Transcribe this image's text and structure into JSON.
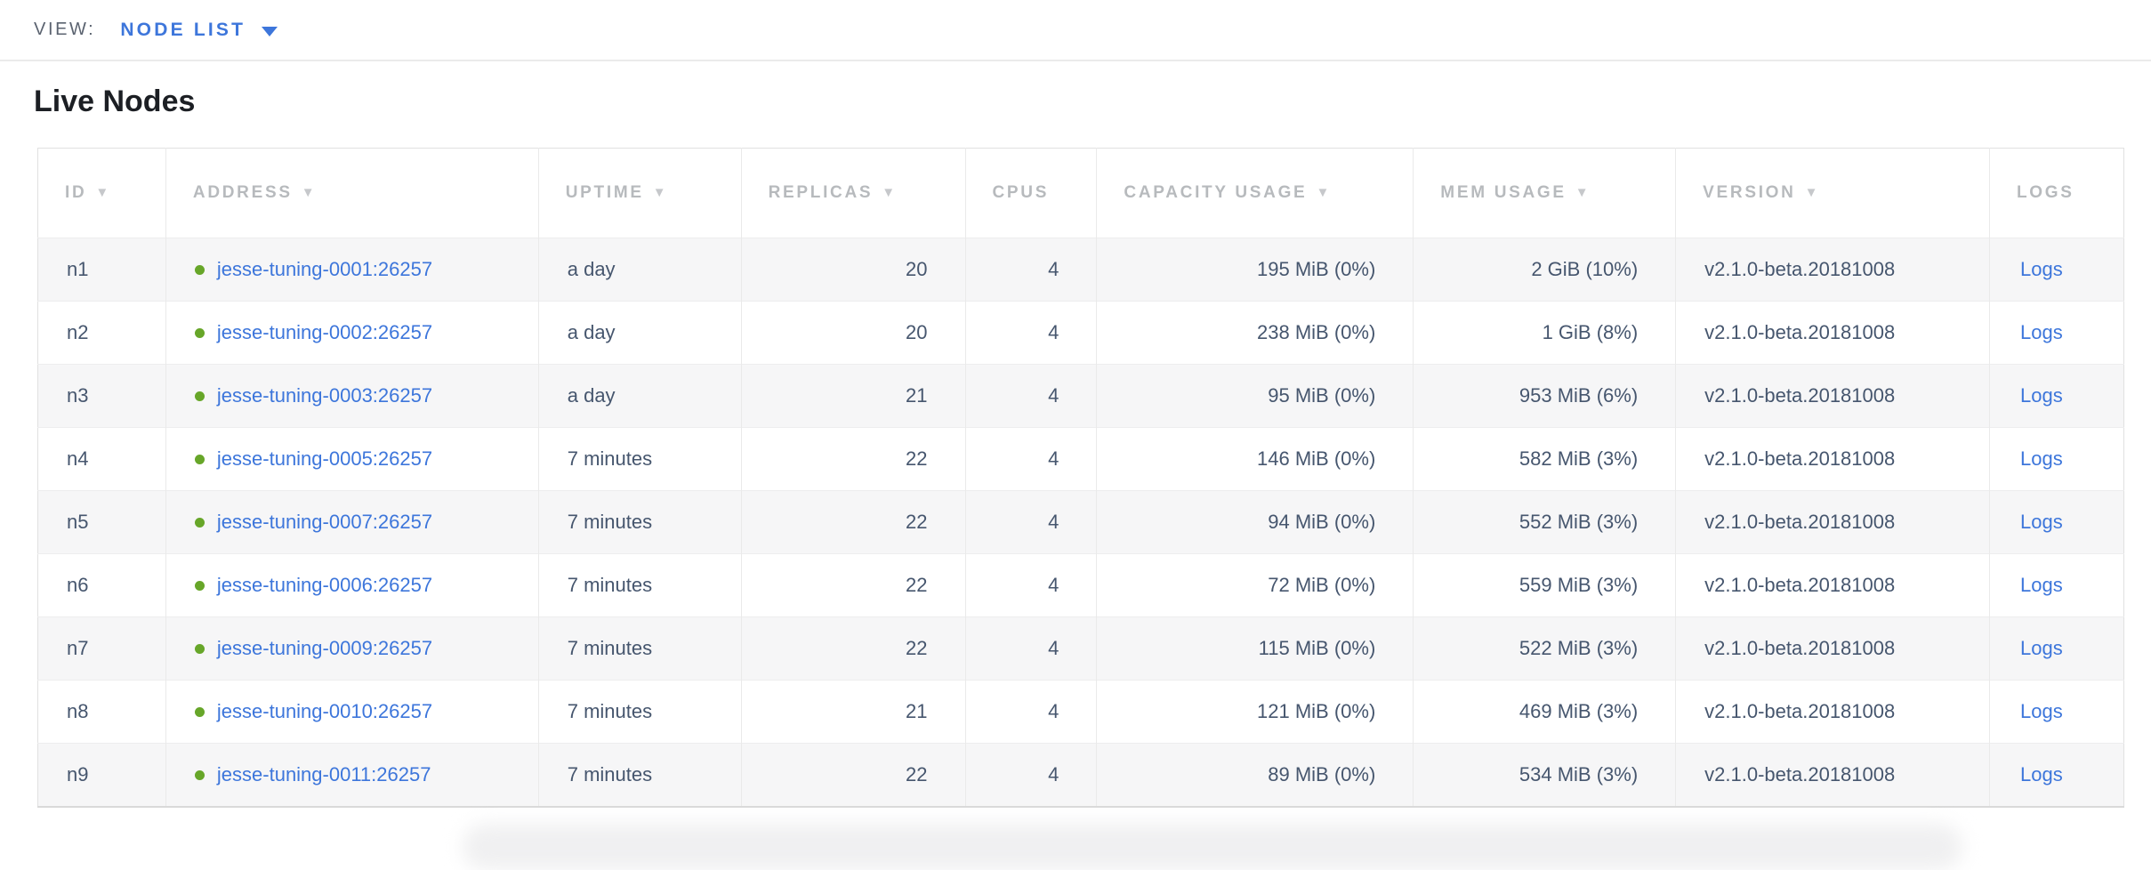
{
  "view_bar": {
    "label": "VIEW:",
    "selected": "NODE LIST"
  },
  "page_title": "Live Nodes",
  "table": {
    "sort_icon": "▼",
    "columns": [
      {
        "key": "id",
        "label": "ID",
        "sortable": true,
        "align": "left"
      },
      {
        "key": "address",
        "label": "ADDRESS",
        "sortable": true,
        "align": "left",
        "type": "node-link"
      },
      {
        "key": "uptime",
        "label": "UPTIME",
        "sortable": true,
        "align": "left"
      },
      {
        "key": "replicas",
        "label": "REPLICAS",
        "sortable": true,
        "align": "right"
      },
      {
        "key": "cpus",
        "label": "CPUS",
        "sortable": false,
        "align": "right"
      },
      {
        "key": "capacity",
        "label": "CAPACITY USAGE",
        "sortable": true,
        "align": "right"
      },
      {
        "key": "mem",
        "label": "MEM USAGE",
        "sortable": true,
        "align": "right"
      },
      {
        "key": "version",
        "label": "VERSION",
        "sortable": true,
        "align": "left"
      },
      {
        "key": "logs",
        "label": "LOGS",
        "sortable": false,
        "align": "left",
        "type": "link"
      }
    ],
    "rows": [
      {
        "id": "n1",
        "address": "jesse-tuning-0001:26257",
        "uptime": "a day",
        "replicas": "20",
        "cpus": "4",
        "capacity": "195 MiB (0%)",
        "mem": "2 GiB (10%)",
        "version": "v2.1.0-beta.20181008",
        "logs": "Logs"
      },
      {
        "id": "n2",
        "address": "jesse-tuning-0002:26257",
        "uptime": "a day",
        "replicas": "20",
        "cpus": "4",
        "capacity": "238 MiB (0%)",
        "mem": "1 GiB (8%)",
        "version": "v2.1.0-beta.20181008",
        "logs": "Logs"
      },
      {
        "id": "n3",
        "address": "jesse-tuning-0003:26257",
        "uptime": "a day",
        "replicas": "21",
        "cpus": "4",
        "capacity": "95 MiB (0%)",
        "mem": "953 MiB (6%)",
        "version": "v2.1.0-beta.20181008",
        "logs": "Logs"
      },
      {
        "id": "n4",
        "address": "jesse-tuning-0005:26257",
        "uptime": "7 minutes",
        "replicas": "22",
        "cpus": "4",
        "capacity": "146 MiB (0%)",
        "mem": "582 MiB (3%)",
        "version": "v2.1.0-beta.20181008",
        "logs": "Logs"
      },
      {
        "id": "n5",
        "address": "jesse-tuning-0007:26257",
        "uptime": "7 minutes",
        "replicas": "22",
        "cpus": "4",
        "capacity": "94 MiB (0%)",
        "mem": "552 MiB (3%)",
        "version": "v2.1.0-beta.20181008",
        "logs": "Logs"
      },
      {
        "id": "n6",
        "address": "jesse-tuning-0006:26257",
        "uptime": "7 minutes",
        "replicas": "22",
        "cpus": "4",
        "capacity": "72 MiB (0%)",
        "mem": "559 MiB (3%)",
        "version": "v2.1.0-beta.20181008",
        "logs": "Logs"
      },
      {
        "id": "n7",
        "address": "jesse-tuning-0009:26257",
        "uptime": "7 minutes",
        "replicas": "22",
        "cpus": "4",
        "capacity": "115 MiB (0%)",
        "mem": "522 MiB (3%)",
        "version": "v2.1.0-beta.20181008",
        "logs": "Logs"
      },
      {
        "id": "n8",
        "address": "jesse-tuning-0010:26257",
        "uptime": "7 minutes",
        "replicas": "21",
        "cpus": "4",
        "capacity": "121 MiB (0%)",
        "mem": "469 MiB (3%)",
        "version": "v2.1.0-beta.20181008",
        "logs": "Logs"
      },
      {
        "id": "n9",
        "address": "jesse-tuning-0011:26257",
        "uptime": "7 minutes",
        "replicas": "22",
        "cpus": "4",
        "capacity": "89 MiB (0%)",
        "mem": "534 MiB (3%)",
        "version": "v2.1.0-beta.20181008",
        "logs": "Logs"
      }
    ]
  },
  "colors": {
    "link_blue": "#3d76db",
    "node_live_green": "#67a629",
    "header_gray": "#b7babd",
    "cell_text": "#46566e",
    "row_stripe": "#f6f6f7",
    "view_label_gray": "#5b6370",
    "title_black": "#1c1f24"
  }
}
